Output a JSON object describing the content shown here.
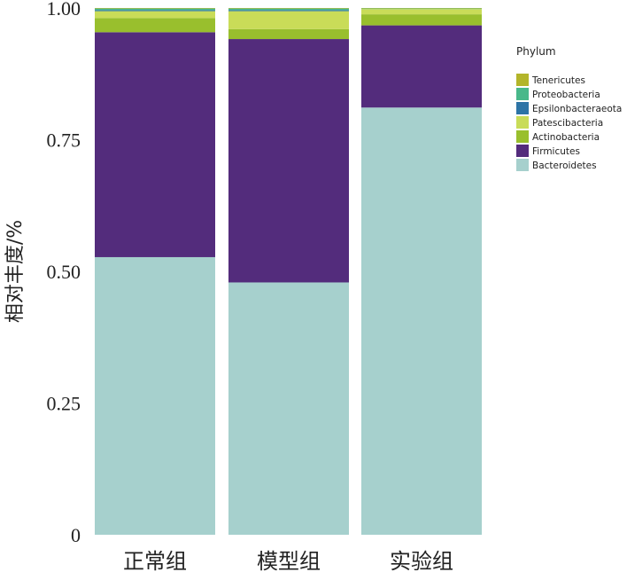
{
  "chart_data": {
    "type": "bar",
    "stacked": true,
    "categories": [
      "正常组",
      "模型组",
      "实验组"
    ],
    "ylabel": "相对丰度/%",
    "ylim": [
      0,
      1.0
    ],
    "yticks": [
      "0",
      "0.25",
      "0.50",
      "0.75",
      "1.00"
    ],
    "ytick_values": [
      0,
      0.25,
      0.5,
      0.75,
      1.0
    ],
    "grid": false,
    "legend": {
      "title": "Phylum",
      "placement": "right"
    },
    "series": [
      {
        "name": "Bacteroidetes",
        "color": "#a6d0cd",
        "values": [
          0.527,
          0.479,
          0.811
        ]
      },
      {
        "name": "Firmicutes",
        "color": "#532c7c",
        "values": [
          0.427,
          0.462,
          0.156
        ]
      },
      {
        "name": "Actinobacteria",
        "color": "#99bf2d",
        "values": [
          0.027,
          0.019,
          0.021
        ]
      },
      {
        "name": "Patescibacteria",
        "color": "#c9dc58",
        "values": [
          0.013,
          0.034,
          0.01
        ]
      },
      {
        "name": "Epsilonbacteraeota",
        "color": "#2d74a6",
        "values": [
          0.002,
          0.002,
          0.0
        ]
      },
      {
        "name": "Proteobacteria",
        "color": "#49b88a",
        "values": [
          0.003,
          0.003,
          0.001
        ]
      },
      {
        "name": "Tenericutes",
        "color": "#b3b52a",
        "values": [
          0.001,
          0.001,
          0.001
        ]
      }
    ],
    "legend_order": [
      "Tenericutes",
      "Proteobacteria",
      "Epsilonbacteraeota",
      "Patescibacteria",
      "Actinobacteria",
      "Firmicutes",
      "Bacteroidetes"
    ]
  }
}
